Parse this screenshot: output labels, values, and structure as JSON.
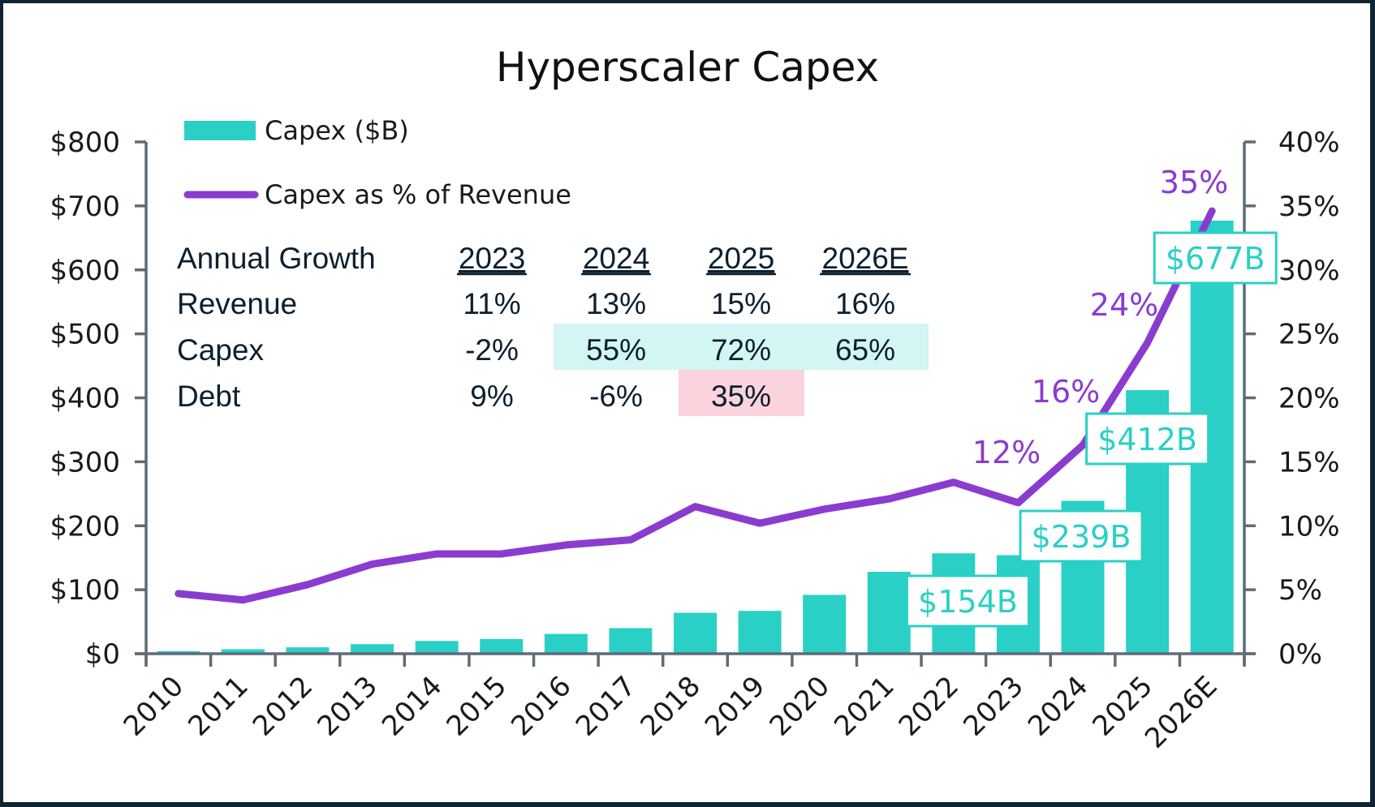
{
  "chart_data": {
    "type": "bar",
    "title": "Hyperscaler Capex",
    "xlabel": "",
    "ylabel": "",
    "categories": [
      "2010",
      "2011",
      "2012",
      "2013",
      "2014",
      "2015",
      "2016",
      "2017",
      "2018",
      "2019",
      "2020",
      "2021",
      "2022",
      "2023",
      "2024",
      "2025",
      "2026E"
    ],
    "series": [
      {
        "name": "Capex ($B)",
        "type": "bar",
        "axis": "left",
        "color": "#2ad0c6",
        "values": [
          4,
          7,
          10,
          15,
          20,
          23,
          31,
          40,
          64,
          67,
          92,
          128,
          157,
          154,
          239,
          412,
          677
        ]
      },
      {
        "name": "Capex as % of Revenue",
        "type": "line",
        "axis": "right",
        "color": "#8a3ccf",
        "values": [
          4.7,
          4.2,
          5.4,
          7.0,
          7.8,
          7.8,
          8.5,
          8.9,
          11.5,
          10.2,
          11.3,
          12.1,
          13.4,
          11.8,
          16.3,
          24.3,
          34.6
        ]
      }
    ],
    "y_left": {
      "range": [
        0,
        800
      ],
      "ticks": [
        0,
        100,
        200,
        300,
        400,
        500,
        600,
        700,
        800
      ],
      "tick_labels": [
        "$0",
        "$100",
        "$200",
        "$300",
        "$400",
        "$500",
        "$600",
        "$700",
        "$800"
      ]
    },
    "y_right": {
      "range": [
        0,
        40
      ],
      "ticks": [
        0,
        5,
        10,
        15,
        20,
        25,
        30,
        35,
        40
      ],
      "tick_labels": [
        "0%",
        "5%",
        "10%",
        "15%",
        "20%",
        "25%",
        "30%",
        "35%",
        "40%"
      ]
    },
    "bar_data_labels": [
      {
        "category": "2023",
        "text": "$154B"
      },
      {
        "category": "2024",
        "text": "$239B"
      },
      {
        "category": "2025",
        "text": "$412B"
      },
      {
        "category": "2026E",
        "text": "$677B"
      }
    ],
    "line_data_labels": [
      {
        "category": "2023",
        "text": "12%"
      },
      {
        "category": "2024",
        "text": "16%"
      },
      {
        "category": "2025",
        "text": "24%"
      },
      {
        "category": "2026E",
        "text": "35%"
      }
    ],
    "legend": {
      "placement": "top-left",
      "entries": [
        {
          "label": "Capex ($B)",
          "kind": "bar",
          "color": "#2ad0c6"
        },
        {
          "label": "Capex as % of Revenue",
          "kind": "line",
          "color": "#8a3ccf"
        }
      ]
    },
    "grid": false,
    "inset_table": {
      "header": "Annual Growth",
      "columns": [
        "2023",
        "2024",
        "2025",
        "2026E"
      ],
      "rows": [
        {
          "label": "Revenue",
          "values": [
            "11%",
            "13%",
            "15%",
            "16%"
          ],
          "highlight": [
            null,
            null,
            null,
            null
          ]
        },
        {
          "label": "Capex",
          "values": [
            "-2%",
            "55%",
            "72%",
            "65%"
          ],
          "highlight": [
            null,
            "teal",
            "teal",
            "teal"
          ]
        },
        {
          "label": "Debt",
          "values": [
            "9%",
            "-6%",
            "35%",
            ""
          ],
          "highlight": [
            null,
            null,
            "pink",
            null
          ]
        }
      ],
      "highlight_colors": {
        "teal": "#d3f5f3",
        "pink": "#fbd3dc"
      }
    }
  },
  "colors": {
    "bar": "#2ad0c6",
    "line": "#8a3ccf",
    "axis": "#5e6b78",
    "frame": "#0f2433",
    "table_text": "#0b1f30"
  }
}
